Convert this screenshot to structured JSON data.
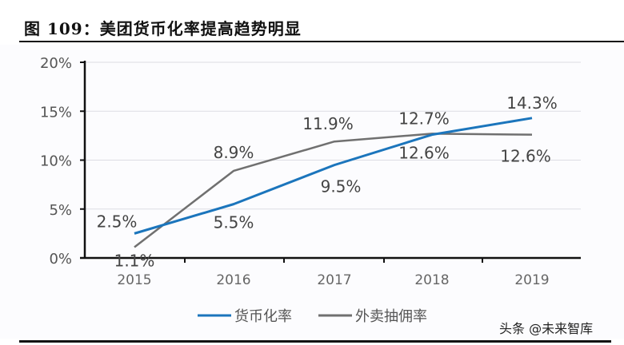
{
  "header": {
    "title": "图 109：美团货币化率提高趋势明显"
  },
  "watermark": "头条 @未来智库",
  "colors": {
    "monetization": "#1b75bc",
    "commission": "#707070",
    "axis": "#111111",
    "grid": "#dcdde3",
    "label": "#444444"
  },
  "chart_data": {
    "type": "line",
    "title": "图 109：美团货币化率提高趋势明显",
    "xlabel": "",
    "ylabel": "",
    "categories": [
      "2015",
      "2016",
      "2017",
      "2018",
      "2019"
    ],
    "yticks": [
      "0%",
      "5%",
      "10%",
      "15%",
      "20%"
    ],
    "ylim": [
      0,
      20
    ],
    "grid": true,
    "legend_position": "bottom",
    "series": [
      {
        "name": "货币化率",
        "values": [
          2.5,
          5.5,
          9.5,
          12.6,
          14.3
        ],
        "labels": [
          "2.5%",
          "5.5%",
          "9.5%",
          "12.6%",
          "14.3%"
        ],
        "color": "#1b75bc"
      },
      {
        "name": "外卖抽佣率",
        "values": [
          1.1,
          8.9,
          11.9,
          12.7,
          12.6
        ],
        "labels": [
          "1.1%",
          "8.9%",
          "11.9%",
          "12.7%",
          "12.6%"
        ],
        "color": "#707070"
      }
    ]
  }
}
